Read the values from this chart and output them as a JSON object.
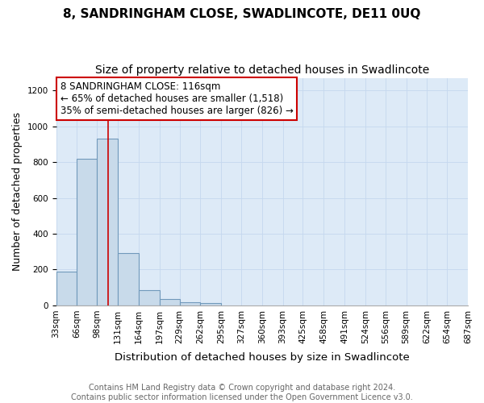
{
  "title": "8, SANDRINGHAM CLOSE, SWADLINCOTE, DE11 0UQ",
  "subtitle": "Size of property relative to detached houses in Swadlincote",
  "xlabel": "Distribution of detached houses by size in Swadlincote",
  "ylabel": "Number of detached properties",
  "bins": [
    33,
    66,
    98,
    131,
    164,
    197,
    229,
    262,
    295,
    327,
    360,
    393,
    425,
    458,
    491,
    524,
    556,
    589,
    622,
    654,
    687
  ],
  "bar_values": [
    190,
    820,
    930,
    290,
    85,
    35,
    18,
    12,
    0,
    0,
    0,
    0,
    0,
    0,
    0,
    0,
    0,
    0,
    0,
    0
  ],
  "bar_color": "#c8daea",
  "bar_edge_color": "#7099bb",
  "bar_edge_width": 0.8,
  "grid_color": "#c5d8ee",
  "plot_bg_color": "#ddeaf7",
  "fig_bg_color": "#ffffff",
  "red_line_x": 116,
  "red_line_color": "#cc0000",
  "annotation_text": "8 SANDRINGHAM CLOSE: 116sqm\n← 65% of detached houses are smaller (1,518)\n35% of semi-detached houses are larger (826) →",
  "annotation_box_color": "#ffffff",
  "annotation_edge_color": "#cc0000",
  "ylim": [
    0,
    1270
  ],
  "yticks": [
    0,
    200,
    400,
    600,
    800,
    1000,
    1200
  ],
  "footer_line1": "Contains HM Land Registry data © Crown copyright and database right 2024.",
  "footer_line2": "Contains public sector information licensed under the Open Government Licence v3.0.",
  "title_fontsize": 11,
  "subtitle_fontsize": 10,
  "xlabel_fontsize": 9.5,
  "ylabel_fontsize": 9,
  "tick_fontsize": 7.5,
  "annotation_fontsize": 8.5,
  "footer_fontsize": 7
}
